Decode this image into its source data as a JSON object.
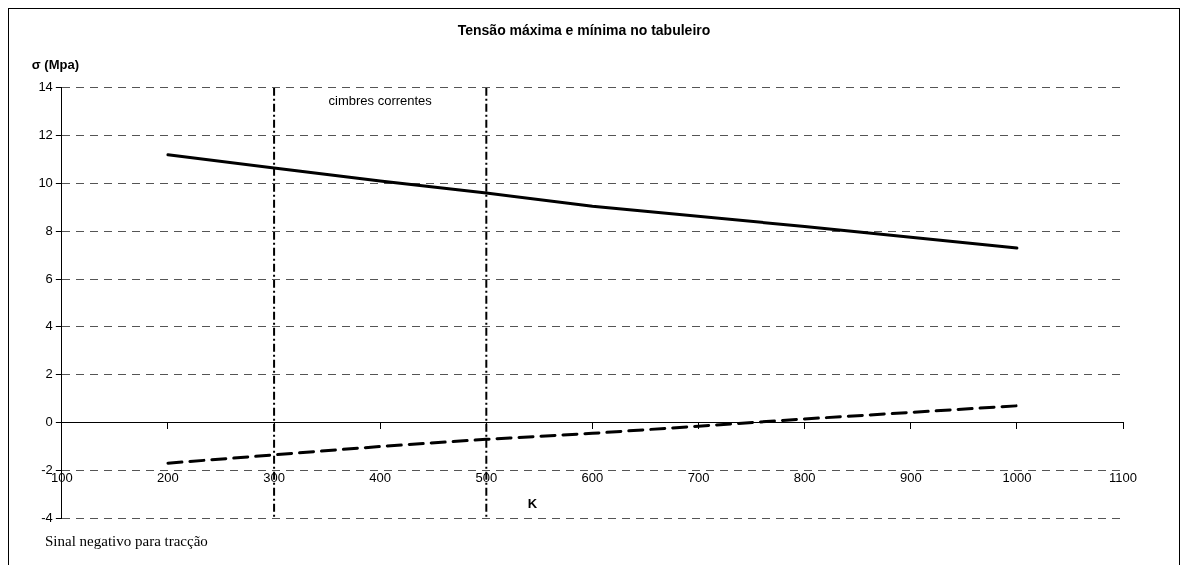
{
  "chart_data": {
    "type": "line",
    "title": "Tensão máxima e mínima no tabuleiro",
    "ylabel": "σ (Mpa)",
    "xlabel": "K",
    "x": [
      200,
      300,
      400,
      500,
      600,
      800,
      1000
    ],
    "series": [
      {
        "color": "#000000",
        "line_style": "solid",
        "values": [
          11.2,
          10.65,
          10.1,
          9.6,
          9.05,
          8.2,
          7.3
        ]
      },
      {
        "color": "#000000",
        "line_style": "dashed",
        "x": [
          200,
          300,
          400,
          500,
          600,
          700,
          800,
          1000
        ],
        "values": [
          -1.7,
          -1.35,
          -1.0,
          -0.7,
          -0.45,
          -0.15,
          0.15,
          0.7
        ]
      }
    ],
    "xlim": [
      100,
      1100
    ],
    "xticks": [
      100,
      200,
      300,
      400,
      500,
      600,
      700,
      800,
      900,
      1000,
      1100
    ],
    "ylim": [
      -4,
      14
    ],
    "yticks": [
      -4,
      -2,
      0,
      2,
      4,
      6,
      8,
      10,
      12,
      14
    ],
    "grid": "y",
    "legend": false,
    "marker": "none",
    "ref_lines": [
      {
        "axis": "x",
        "value": 300,
        "line_style": "dashdot",
        "color": "#000000"
      },
      {
        "axis": "x",
        "value": 500,
        "line_style": "dashdot",
        "color": "#000000"
      }
    ],
    "annotations": [
      "cimbres correntes",
      "Sinal negativo para tracção"
    ]
  }
}
